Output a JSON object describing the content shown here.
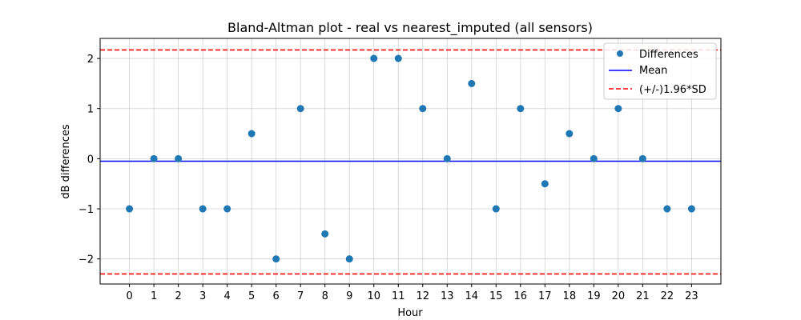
{
  "chart_data": {
    "type": "scatter",
    "title": "Bland-Altman plot - real vs nearest_imputed (all sensors)",
    "xlabel": "Hour",
    "ylabel": "dB differences",
    "xlim": [
      -1.2,
      24.2
    ],
    "ylim": [
      -2.5,
      2.4
    ],
    "x_ticks": [
      0,
      1,
      2,
      3,
      4,
      5,
      6,
      7,
      8,
      9,
      10,
      11,
      12,
      13,
      14,
      15,
      16,
      17,
      18,
      19,
      20,
      21,
      22,
      23
    ],
    "y_ticks": [
      -2,
      -1,
      0,
      1,
      2
    ],
    "y_tick_labels": [
      "−2",
      "−1",
      "0",
      "1",
      "2"
    ],
    "grid": true,
    "legend_position": "top-right",
    "series": [
      {
        "name": "Differences",
        "kind": "points",
        "color": "#1f77b4",
        "x": [
          0,
          1,
          2,
          3,
          4,
          5,
          6,
          7,
          8,
          9,
          10,
          11,
          12,
          13,
          14,
          15,
          16,
          17,
          18,
          19,
          20,
          21,
          22,
          23
        ],
        "y": [
          -1,
          0,
          0,
          -1,
          -1,
          0.5,
          -2,
          1,
          -1.5,
          -2,
          2,
          2,
          1,
          0,
          1.5,
          -1,
          1,
          -0.5,
          0.5,
          0,
          1,
          0,
          -1,
          -1
        ]
      },
      {
        "name": "Mean",
        "kind": "hline",
        "color": "#0000ff",
        "style": "solid",
        "y": -0.05
      },
      {
        "name": "(+/-)1.96*SD",
        "kind": "hline",
        "color": "#ff0000",
        "style": "dashed",
        "y": [
          2.17,
          -2.3
        ]
      }
    ]
  }
}
